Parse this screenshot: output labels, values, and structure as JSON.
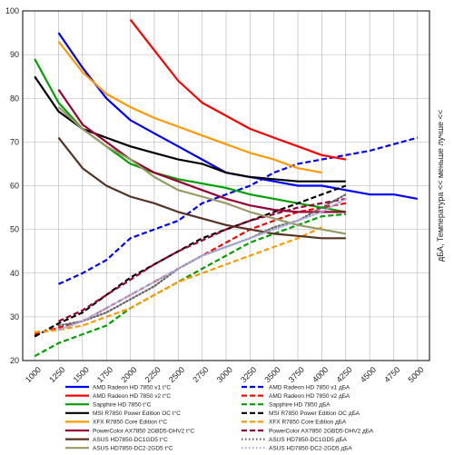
{
  "chart_data": {
    "type": "line",
    "y_axis_label": "дБА, Температура << меньше лучше <<",
    "xlim": [
      875,
      5125
    ],
    "ylim": [
      20,
      100
    ],
    "x_ticks": [
      1000,
      1250,
      1500,
      1750,
      2000,
      2250,
      2500,
      2750,
      3000,
      3250,
      3500,
      3750,
      4000,
      4250,
      4500,
      4750,
      5000
    ],
    "y_ticks": [
      20,
      30,
      40,
      50,
      60,
      70,
      80,
      90,
      100
    ],
    "grid": true,
    "legend_position": "bottom",
    "series": [
      {
        "name": "AMD Radeon HD 7850 v1 t°C",
        "color": "#0000ff",
        "style": "solid",
        "points": [
          [
            1250,
            95
          ],
          [
            1500,
            87
          ],
          [
            1750,
            80
          ],
          [
            2000,
            75
          ],
          [
            2250,
            72
          ],
          [
            2500,
            69
          ],
          [
            2750,
            66
          ],
          [
            3000,
            63
          ],
          [
            3250,
            62
          ],
          [
            3500,
            61
          ],
          [
            3750,
            60
          ],
          [
            4000,
            60
          ],
          [
            4250,
            59
          ],
          [
            4500,
            58
          ],
          [
            4750,
            58
          ],
          [
            5000,
            57
          ]
        ]
      },
      {
        "name": "AMD Radeon HD 7850 v1 дБА",
        "color": "#0000ff",
        "style": "dashed",
        "points": [
          [
            1250,
            37.5
          ],
          [
            1500,
            40
          ],
          [
            1750,
            43
          ],
          [
            2000,
            48
          ],
          [
            2250,
            50
          ],
          [
            2500,
            52
          ],
          [
            2750,
            56
          ],
          [
            3000,
            58
          ],
          [
            3250,
            60
          ],
          [
            3500,
            63
          ],
          [
            3750,
            65
          ],
          [
            4000,
            66
          ],
          [
            4250,
            67
          ],
          [
            4500,
            68
          ],
          [
            4750,
            69.5
          ],
          [
            5000,
            71
          ]
        ]
      },
      {
        "name": "AMD Radeon HD 7850 v2 t°C",
        "color": "#ff0000",
        "style": "solid",
        "points": [
          [
            2000,
            98
          ],
          [
            2250,
            91
          ],
          [
            2500,
            84
          ],
          [
            2750,
            79
          ],
          [
            3000,
            76
          ],
          [
            3250,
            73
          ],
          [
            3500,
            71
          ],
          [
            3750,
            69
          ],
          [
            4000,
            67
          ],
          [
            4250,
            66
          ]
        ]
      },
      {
        "name": "AMD Radeon HD 7850 v2 дБА",
        "color": "#ff0000",
        "style": "dashed",
        "points": [
          [
            1000,
            26
          ],
          [
            1250,
            27.5
          ],
          [
            1500,
            29
          ],
          [
            1750,
            32
          ],
          [
            2000,
            35
          ],
          [
            2250,
            38
          ],
          [
            2500,
            41
          ],
          [
            2750,
            44
          ],
          [
            3000,
            47
          ],
          [
            3250,
            50
          ],
          [
            3500,
            52
          ],
          [
            3750,
            54
          ],
          [
            4000,
            55
          ],
          [
            4250,
            56
          ]
        ]
      },
      {
        "name": "Sapphire HD 7850 t°C",
        "color": "#00a000",
        "style": "solid",
        "points": [
          [
            1000,
            89
          ],
          [
            1250,
            79
          ],
          [
            1500,
            73
          ],
          [
            1750,
            69
          ],
          [
            2000,
            65
          ],
          [
            2250,
            63
          ],
          [
            2500,
            61.5
          ],
          [
            2750,
            60.5
          ],
          [
            3000,
            59.5
          ],
          [
            3250,
            58
          ],
          [
            3500,
            57
          ],
          [
            3750,
            56
          ],
          [
            4000,
            55
          ],
          [
            4250,
            54
          ]
        ]
      },
      {
        "name": "Sapphire HD 7850 дБА",
        "color": "#00a000",
        "style": "dashed",
        "points": [
          [
            1000,
            21
          ],
          [
            1250,
            24
          ],
          [
            1500,
            26
          ],
          [
            1750,
            28
          ],
          [
            2000,
            32
          ],
          [
            2250,
            35
          ],
          [
            2500,
            38
          ],
          [
            2750,
            41
          ],
          [
            3000,
            44
          ],
          [
            3250,
            47
          ],
          [
            3500,
            49
          ],
          [
            3750,
            51
          ],
          [
            4000,
            53
          ],
          [
            4250,
            53.5
          ]
        ]
      },
      {
        "name": "MSI R7850 Power Edition OC t°C",
        "color": "#000000",
        "style": "solid",
        "points": [
          [
            1000,
            85
          ],
          [
            1250,
            77
          ],
          [
            1500,
            73
          ],
          [
            1750,
            71
          ],
          [
            2000,
            69
          ],
          [
            2250,
            67.5
          ],
          [
            2500,
            66
          ],
          [
            2750,
            65
          ],
          [
            3000,
            63
          ],
          [
            3250,
            62
          ],
          [
            3500,
            61.5
          ],
          [
            3750,
            61
          ],
          [
            4000,
            61
          ],
          [
            4250,
            61
          ]
        ]
      },
      {
        "name": "MSI R7850 Power Edition OC дБА",
        "color": "#000000",
        "style": "dashed",
        "points": [
          [
            1000,
            25.5
          ],
          [
            1250,
            28.5
          ],
          [
            1500,
            31
          ],
          [
            1750,
            35
          ],
          [
            2000,
            39
          ],
          [
            2250,
            42
          ],
          [
            2500,
            45
          ],
          [
            2750,
            48
          ],
          [
            3000,
            50
          ],
          [
            3250,
            52
          ],
          [
            3500,
            54
          ],
          [
            3750,
            56
          ],
          [
            4000,
            58
          ],
          [
            4250,
            60
          ]
        ]
      },
      {
        "name": "XFX R7850 Core Edition t°C",
        "color": "#ff9900",
        "style": "solid",
        "points": [
          [
            1250,
            93
          ],
          [
            1500,
            86
          ],
          [
            1750,
            81
          ],
          [
            2000,
            78
          ],
          [
            2250,
            75.5
          ],
          [
            2500,
            73.5
          ],
          [
            2750,
            71.5
          ],
          [
            3000,
            69.5
          ],
          [
            3250,
            67.5
          ],
          [
            3500,
            66
          ],
          [
            3750,
            64
          ],
          [
            4000,
            63
          ]
        ]
      },
      {
        "name": "XFX R7850 Core Edition дБА",
        "color": "#ff9900",
        "style": "dashed",
        "points": [
          [
            1000,
            26.5
          ],
          [
            1250,
            27
          ],
          [
            1500,
            28
          ],
          [
            1750,
            30
          ],
          [
            2000,
            32
          ],
          [
            2250,
            35
          ],
          [
            2500,
            38
          ],
          [
            2750,
            40
          ],
          [
            3000,
            42
          ],
          [
            3250,
            44
          ],
          [
            3500,
            46
          ],
          [
            3750,
            48
          ],
          [
            4000,
            50.5
          ]
        ]
      },
      {
        "name": "PowerColor AX7850 2GBD5-DHV2 t°C",
        "color": "#990033",
        "style": "solid",
        "points": [
          [
            1250,
            82
          ],
          [
            1500,
            74
          ],
          [
            1750,
            70
          ],
          [
            2000,
            66
          ],
          [
            2250,
            63
          ],
          [
            2500,
            61
          ],
          [
            2750,
            59
          ],
          [
            3000,
            57
          ],
          [
            3250,
            55.5
          ],
          [
            3500,
            54.5
          ],
          [
            3750,
            54
          ],
          [
            4000,
            54
          ],
          [
            4250,
            54
          ]
        ]
      },
      {
        "name": "PowerColor AX7850 2GBD5-DHV2 дБА",
        "color": "#990033",
        "style": "dashed",
        "points": [
          [
            1250,
            29
          ],
          [
            1500,
            31.5
          ],
          [
            1750,
            35
          ],
          [
            2000,
            38.5
          ],
          [
            2250,
            42
          ],
          [
            2500,
            45
          ],
          [
            2750,
            47.5
          ],
          [
            3000,
            50
          ],
          [
            3250,
            52
          ],
          [
            3500,
            53.5
          ],
          [
            3750,
            55
          ],
          [
            4000,
            56
          ],
          [
            4250,
            57
          ]
        ]
      },
      {
        "name": "ASUS HD7850-DC1GD5 t°C",
        "color": "#553322",
        "style": "solid",
        "points": [
          [
            1250,
            71
          ],
          [
            1500,
            64
          ],
          [
            1750,
            60
          ],
          [
            2000,
            57.5
          ],
          [
            2250,
            56
          ],
          [
            2500,
            54
          ],
          [
            2750,
            52.5
          ],
          [
            3000,
            51
          ],
          [
            3250,
            50
          ],
          [
            3500,
            49
          ],
          [
            3750,
            48.5
          ],
          [
            4000,
            48
          ],
          [
            4250,
            48
          ]
        ]
      },
      {
        "name": "ASUS HD7850-DC1GD5 дБА",
        "color": "#666666",
        "style": "dotted",
        "points": [
          [
            1250,
            28
          ],
          [
            1500,
            29
          ],
          [
            1750,
            31
          ],
          [
            2000,
            34
          ],
          [
            2250,
            37
          ],
          [
            2500,
            41
          ],
          [
            2750,
            44
          ],
          [
            3000,
            46
          ],
          [
            3250,
            48
          ],
          [
            3500,
            50.5
          ],
          [
            3750,
            52
          ],
          [
            4000,
            55
          ],
          [
            4250,
            58
          ]
        ]
      },
      {
        "name": "ASUS HD7850-DC2-2GD5 t°C",
        "color": "#999966",
        "style": "solid",
        "points": [
          [
            1250,
            78
          ],
          [
            1500,
            73
          ],
          [
            1750,
            69
          ],
          [
            2000,
            66
          ],
          [
            2250,
            62
          ],
          [
            2500,
            59
          ],
          [
            2750,
            57.5
          ],
          [
            3000,
            56
          ],
          [
            3250,
            54
          ],
          [
            3500,
            52.5
          ],
          [
            3750,
            51
          ],
          [
            4000,
            50
          ],
          [
            4250,
            49
          ]
        ]
      },
      {
        "name": "ASUS HD7850-DC2-2GD5 дБА",
        "color": "#aaaadd",
        "style": "dotted",
        "points": [
          [
            1250,
            27
          ],
          [
            1500,
            29
          ],
          [
            1750,
            32
          ],
          [
            2000,
            35
          ],
          [
            2250,
            38
          ],
          [
            2500,
            41
          ],
          [
            2750,
            44
          ],
          [
            3000,
            46
          ],
          [
            3250,
            48
          ],
          [
            3500,
            50
          ],
          [
            3750,
            52
          ],
          [
            4000,
            54
          ],
          [
            4250,
            57
          ]
        ]
      }
    ]
  }
}
